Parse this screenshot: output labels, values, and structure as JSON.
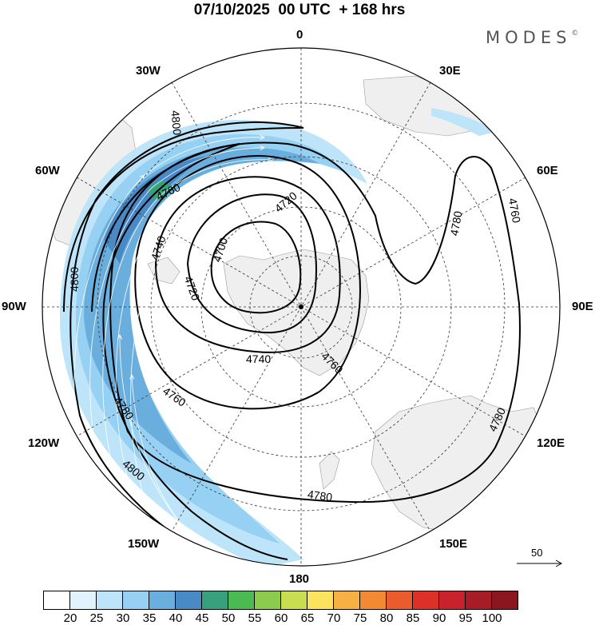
{
  "header": {
    "title": "07/10/2025  00 UTC  + 168 hrs",
    "brand": "MODES",
    "brand_mark": "©"
  },
  "map": {
    "projection": "south polar stereographic",
    "longitude_labels": {
      "top": "0",
      "bottom": "180",
      "left": "90W",
      "right": "90E",
      "upper_left_1": "30W",
      "upper_left_2": "60W",
      "upper_right_1": "30E",
      "upper_right_2": "60E",
      "lower_left_1": "120W",
      "lower_left_2": "150W",
      "lower_right_1": "120E",
      "lower_right_2": "150E"
    },
    "contour_labels": [
      "4700",
      "4720",
      "4720",
      "4740",
      "4740",
      "4760",
      "4760",
      "4760",
      "4780",
      "4780",
      "4780",
      "4760",
      "4800",
      "4800",
      "4800",
      "4780"
    ],
    "reference_vector": "50"
  },
  "colorbar": {
    "colors": [
      "#ffffff",
      "#e1f2fd",
      "#bde4f9",
      "#96d0f2",
      "#6aaedd",
      "#4889c6",
      "#38a07d",
      "#4bba52",
      "#8dcb4e",
      "#c8dd50",
      "#fae35d",
      "#f6b043",
      "#f28a34",
      "#ea5c2e",
      "#dd3026",
      "#c9222c",
      "#a81c26",
      "#8c1620"
    ],
    "labels": [
      "20",
      "25",
      "30",
      "35",
      "40",
      "45",
      "50",
      "55",
      "60",
      "65",
      "70",
      "75",
      "80",
      "85",
      "90",
      "95",
      "100"
    ]
  }
}
